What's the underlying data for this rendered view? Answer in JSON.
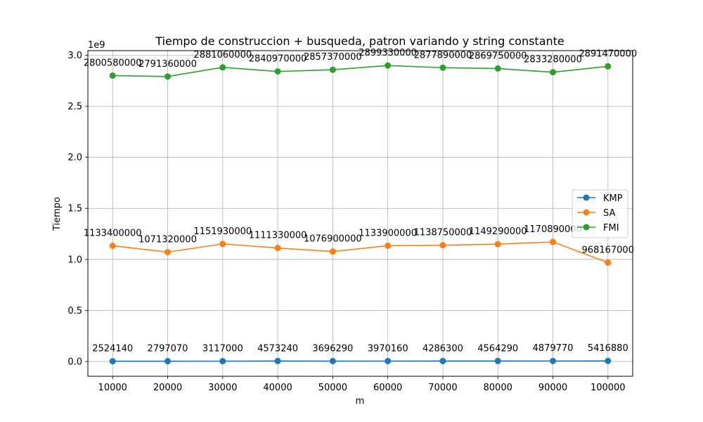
{
  "chart_data": {
    "type": "line",
    "title": "Tiempo de construccion + busqueda, patron variando y string constante",
    "xlabel": "m",
    "ylabel": "Tiempo",
    "y_scale_label": "1e9",
    "x": [
      10000,
      20000,
      30000,
      40000,
      50000,
      60000,
      70000,
      80000,
      90000,
      100000
    ],
    "xticks": [
      "10000",
      "20000",
      "30000",
      "40000",
      "50000",
      "60000",
      "70000",
      "80000",
      "90000",
      "100000"
    ],
    "yticks": [
      "0.0",
      "0.5",
      "1.0",
      "1.5",
      "2.0",
      "2.5",
      "3.0"
    ],
    "ylim": [
      -0.145,
      3.045
    ],
    "grid": true,
    "legend_position": "center-right",
    "series": [
      {
        "name": "KMP",
        "color": "#1f77b4",
        "values": [
          2524140,
          2797070,
          3117000,
          4573240,
          3696290,
          3970160,
          4286300,
          4564290,
          4879770,
          5416880
        ]
      },
      {
        "name": "SA",
        "color": "#ff7f0e",
        "values": [
          1133400000,
          1071320000,
          1151930000,
          1111330000,
          1076900000,
          1133900000,
          1138750000,
          1149290000,
          1170890000,
          968167000
        ]
      },
      {
        "name": "FMI",
        "color": "#2ca02c",
        "values": [
          2800580000,
          2791360000,
          2881060000,
          2840970000,
          2857370000,
          2899330000,
          2877890000,
          2869750000,
          2833280000,
          2891470000
        ]
      }
    ]
  }
}
